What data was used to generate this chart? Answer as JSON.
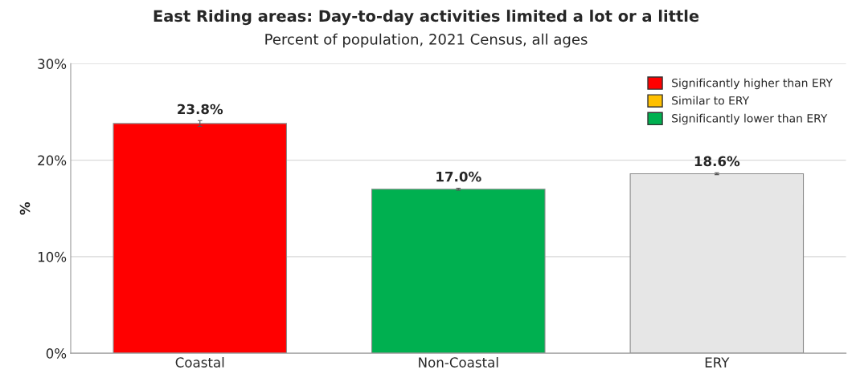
{
  "chart_data": {
    "type": "bar",
    "title": "East Riding areas: Day-to-day activities limited a lot or a little",
    "subtitle": "Percent of population, 2021 Census, all ages",
    "ylabel": "%",
    "categories": [
      "Coastal",
      "Non-Coastal",
      "ERY"
    ],
    "series": [
      {
        "name": "Significantly higher than ERY",
        "color": "#ff0000",
        "values": [
          23.8,
          null,
          null
        ],
        "errors": [
          0.3,
          null,
          null
        ],
        "value_labels": [
          "23.8%",
          null,
          null
        ]
      },
      {
        "name": "Similar to ERY",
        "color": "#ffc000",
        "values": [
          null,
          null,
          null
        ]
      },
      {
        "name": "Significantly lower than ERY",
        "color": "#00b050",
        "values": [
          null,
          17.0,
          null
        ],
        "errors": [
          null,
          0.1,
          null
        ],
        "value_labels": [
          null,
          "17.0%",
          null
        ]
      },
      {
        "color": "#e6e6e6",
        "values": [
          null,
          null,
          18.6
        ],
        "errors": [
          null,
          null,
          0.1
        ],
        "value_labels": [
          null,
          null,
          "18.6%"
        ]
      }
    ],
    "ylim": [
      0,
      30
    ],
    "yticks": [
      {
        "value": 0,
        "label": "0%"
      },
      {
        "value": 10,
        "label": "10%"
      },
      {
        "value": 20,
        "label": "20%"
      },
      {
        "value": 30,
        "label": "30%"
      }
    ],
    "grid": "y",
    "legend": "top right"
  }
}
